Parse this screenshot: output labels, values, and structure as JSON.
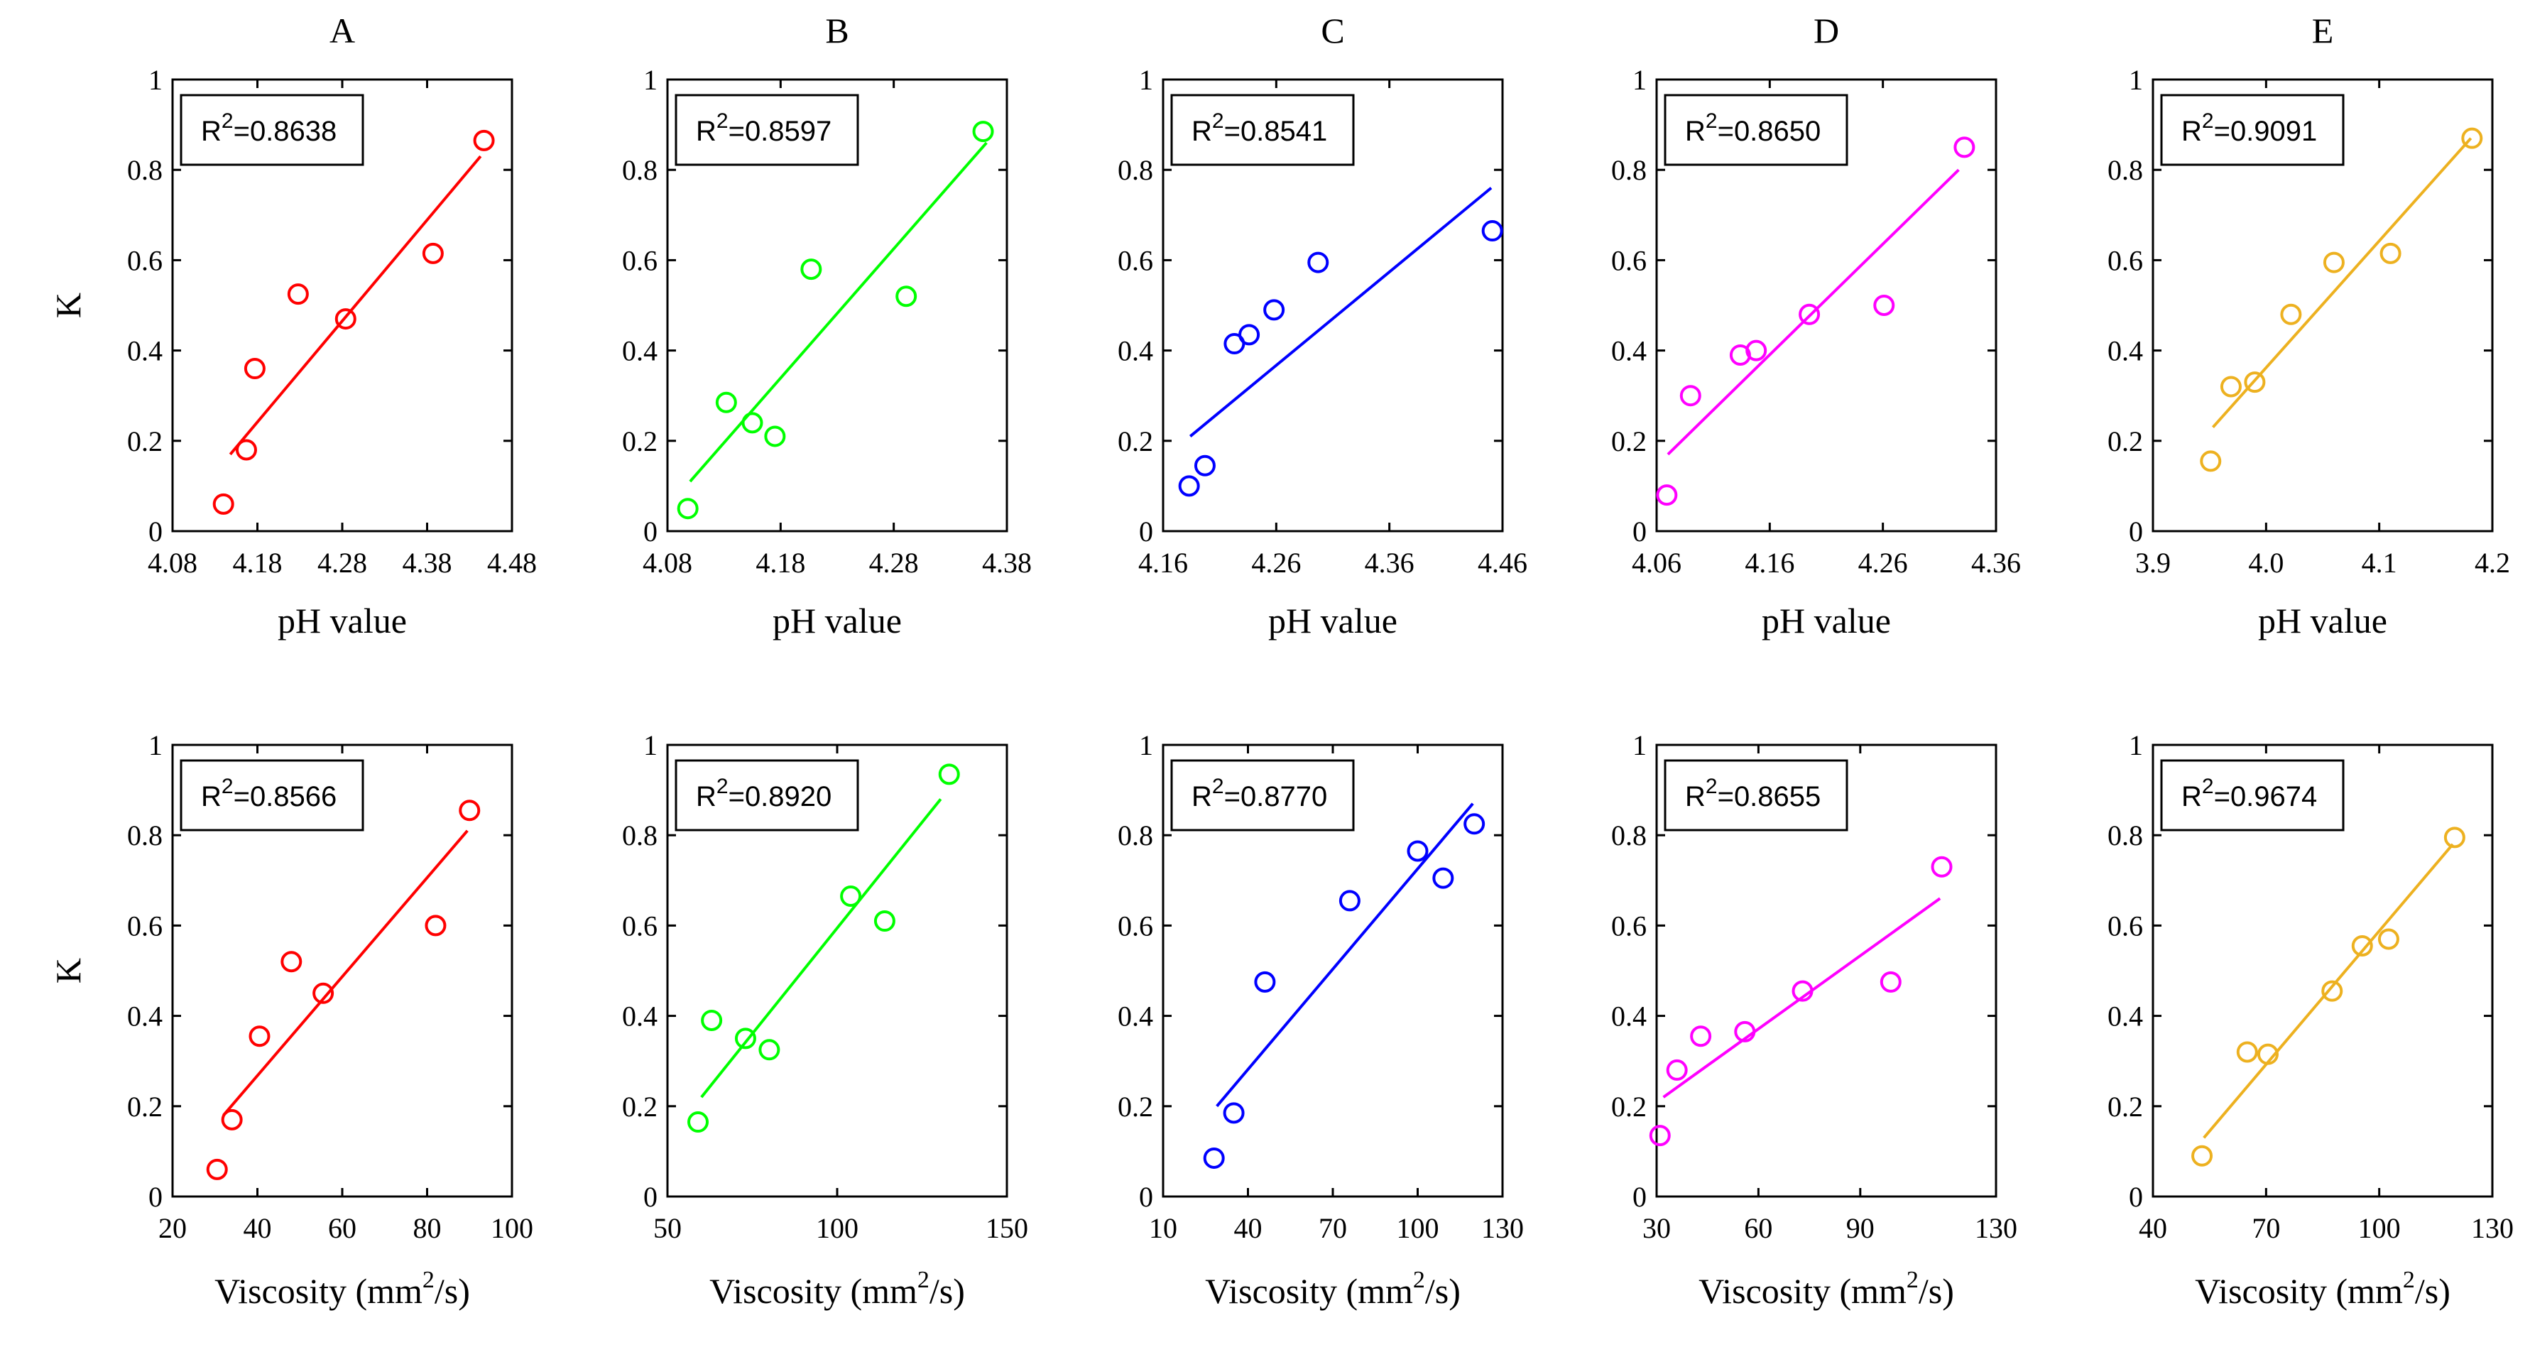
{
  "chart_data": [
    {
      "type": "scatter",
      "column": "A",
      "xlabel": "pH value",
      "ylabel": "K",
      "color": "#ff0000",
      "r2_base": "R",
      "r2_sup": "2",
      "r2_value": "=0.8638",
      "xlim": [
        4.08,
        4.48
      ],
      "ylim": [
        0,
        1
      ],
      "xticks": [
        "4.08",
        "4.18",
        "4.28",
        "4.38",
        "4.48"
      ],
      "yticks": [
        "0",
        "0.2",
        "0.4",
        "0.6",
        "0.8",
        "1"
      ],
      "x": [
        4.14,
        4.167,
        4.177,
        4.228,
        4.284,
        4.387,
        4.447
      ],
      "y": [
        0.06,
        0.18,
        0.36,
        0.525,
        0.47,
        0.615,
        0.865
      ],
      "fit_x": [
        4.148,
        4.443
      ],
      "fit_y": [
        0.17,
        0.83
      ]
    },
    {
      "type": "scatter",
      "column": "B",
      "xlabel": "pH value",
      "ylabel": "",
      "color": "#00ff00",
      "r2_base": "R",
      "r2_sup": "2",
      "r2_value": "=0.8597",
      "xlim": [
        4.08,
        4.38
      ],
      "ylim": [
        0,
        1
      ],
      "xticks": [
        "4.08",
        "4.18",
        "4.28",
        "4.38"
      ],
      "yticks": [
        "0",
        "0.2",
        "0.4",
        "0.6",
        "0.8",
        "1"
      ],
      "x": [
        4.098,
        4.132,
        4.155,
        4.175,
        4.207,
        4.291,
        4.359
      ],
      "y": [
        0.05,
        0.285,
        0.24,
        0.21,
        0.58,
        0.52,
        0.885
      ],
      "fit_x": [
        4.1,
        4.362
      ],
      "fit_y": [
        0.11,
        0.86
      ]
    },
    {
      "type": "scatter",
      "column": "C",
      "xlabel": "pH value",
      "ylabel": "",
      "color": "#0000ff",
      "r2_base": "R",
      "r2_sup": "2",
      "r2_value": "=0.8541",
      "xlim": [
        4.16,
        4.46
      ],
      "ylim": [
        0,
        1
      ],
      "xticks": [
        "4.16",
        "4.26",
        "4.36",
        "4.46"
      ],
      "yticks": [
        "0",
        "0.2",
        "0.4",
        "0.6",
        "0.8",
        "1"
      ],
      "x": [
        4.183,
        4.197,
        4.223,
        4.236,
        4.258,
        4.297,
        4.451
      ],
      "y": [
        0.1,
        0.145,
        0.415,
        0.435,
        0.49,
        0.595,
        0.665
      ],
      "fit_x": [
        4.184,
        4.45
      ],
      "fit_y": [
        0.21,
        0.76
      ]
    },
    {
      "type": "scatter",
      "column": "D",
      "xlabel": "pH value",
      "ylabel": "",
      "color": "#ff00ff",
      "r2_base": "R",
      "r2_sup": "2",
      "r2_value": "=0.8650",
      "xlim": [
        4.06,
        4.36
      ],
      "ylim": [
        0,
        1
      ],
      "xticks": [
        "4.06",
        "4.16",
        "4.26",
        "4.36"
      ],
      "yticks": [
        "0",
        "0.2",
        "0.4",
        "0.6",
        "0.8",
        "1"
      ],
      "x": [
        4.069,
        4.09,
        4.134,
        4.148,
        4.195,
        4.261,
        4.332
      ],
      "y": [
        0.08,
        0.3,
        0.39,
        0.4,
        0.48,
        0.5,
        0.85
      ],
      "fit_x": [
        4.07,
        4.327
      ],
      "fit_y": [
        0.17,
        0.8
      ]
    },
    {
      "type": "scatter",
      "column": "E",
      "xlabel": "pH value",
      "ylabel": "",
      "color": "#edb120",
      "r2_base": "R",
      "r2_sup": "2",
      "r2_value": "=0.9091",
      "xlim": [
        3.9,
        4.2
      ],
      "ylim": [
        0,
        1
      ],
      "xticks": [
        "3.9",
        "4.0",
        "4.1",
        "4.2"
      ],
      "yticks": [
        "0",
        "0.2",
        "0.4",
        "0.6",
        "0.8",
        "1"
      ],
      "x": [
        3.951,
        3.969,
        3.99,
        4.022,
        4.06,
        4.11,
        4.182
      ],
      "y": [
        0.155,
        0.32,
        0.33,
        0.48,
        0.595,
        0.615,
        0.87
      ],
      "fit_x": [
        3.953,
        4.181
      ],
      "fit_y": [
        0.23,
        0.87
      ]
    },
    {
      "type": "scatter",
      "column": "A",
      "xlabel": "Viscosity (mm²/s)",
      "ylabel": "K",
      "xlabel_base": "Viscosity (mm",
      "xlabel_sup": "2",
      "xlabel_end": "/s)",
      "color": "#ff0000",
      "r2_base": "R",
      "r2_sup": "2",
      "r2_value": "=0.8566",
      "xlim": [
        20,
        100
      ],
      "ylim": [
        0,
        1
      ],
      "xticks": [
        "20",
        "40",
        "60",
        "80",
        "100"
      ],
      "yticks": [
        "0",
        "0.2",
        "0.4",
        "0.6",
        "0.8",
        "1"
      ],
      "x": [
        30.5,
        34,
        40.5,
        48,
        55.5,
        82,
        90
      ],
      "y": [
        0.06,
        0.17,
        0.355,
        0.52,
        0.45,
        0.6,
        0.855
      ],
      "fit_x": [
        32,
        89.5
      ],
      "fit_y": [
        0.18,
        0.81
      ]
    },
    {
      "type": "scatter",
      "column": "B",
      "xlabel": "Viscosity (mm²/s)",
      "ylabel": "",
      "xlabel_base": "Viscosity (mm",
      "xlabel_sup": "2",
      "xlabel_end": "/s)",
      "color": "#00ff00",
      "r2_base": "R",
      "r2_sup": "2",
      "r2_value": "=0.8920",
      "xlim": [
        50,
        150
      ],
      "ylim": [
        0,
        1
      ],
      "xticks": [
        "50",
        "100",
        "150"
      ],
      "yticks": [
        "0",
        "0.2",
        "0.4",
        "0.6",
        "0.8",
        "1"
      ],
      "x": [
        59,
        63,
        73,
        80,
        104,
        114,
        133
      ],
      "y": [
        0.165,
        0.39,
        0.35,
        0.325,
        0.665,
        0.61,
        0.935
      ],
      "fit_x": [
        60,
        130.5
      ],
      "fit_y": [
        0.22,
        0.88
      ]
    },
    {
      "type": "scatter",
      "column": "C",
      "xlabel": "Viscosity (mm²/s)",
      "ylabel": "",
      "xlabel_base": "Viscosity (mm",
      "xlabel_sup": "2",
      "xlabel_end": "/s)",
      "color": "#0000ff",
      "r2_base": "R",
      "r2_sup": "2",
      "r2_value": "=0.8770",
      "xlim": [
        10,
        130
      ],
      "ylim": [
        0,
        1
      ],
      "xticks": [
        "10",
        "40",
        "70",
        "100",
        "130"
      ],
      "yticks": [
        "0",
        "0.2",
        "0.4",
        "0.6",
        "0.8",
        "1"
      ],
      "x": [
        28,
        35,
        46,
        76,
        100,
        109,
        120
      ],
      "y": [
        0.085,
        0.185,
        0.475,
        0.655,
        0.765,
        0.705,
        0.825
      ],
      "fit_x": [
        29,
        119.5
      ],
      "fit_y": [
        0.2,
        0.87
      ]
    },
    {
      "type": "scatter",
      "column": "D",
      "xlabel": "Viscosity (mm²/s)",
      "ylabel": "",
      "xlabel_base": "Viscosity (mm",
      "xlabel_sup": "2",
      "xlabel_end": "/s)",
      "color": "#ff00ff",
      "r2_base": "R",
      "r2_sup": "2",
      "r2_value": "=0.8655",
      "xlim": [
        30,
        130
      ],
      "ylim": [
        0,
        1
      ],
      "xticks": [
        "30",
        "60",
        "90",
        "130"
      ],
      "yticks": [
        "0",
        "0.2",
        "0.4",
        "0.6",
        "0.8",
        "1"
      ],
      "x": [
        31,
        36,
        43,
        56,
        73,
        99,
        114
      ],
      "y": [
        0.135,
        0.28,
        0.355,
        0.365,
        0.455,
        0.475,
        0.73
      ],
      "fit_x": [
        32,
        113.5
      ],
      "fit_y": [
        0.22,
        0.66
      ]
    },
    {
      "type": "scatter",
      "column": "E",
      "xlabel": "Viscosity (mm²/s)",
      "ylabel": "",
      "xlabel_base": "Viscosity (mm",
      "xlabel_sup": "2",
      "xlabel_end": "/s)",
      "color": "#edb120",
      "r2_base": "R",
      "r2_sup": "2",
      "r2_value": "=0.9674",
      "xlim": [
        40,
        130
      ],
      "ylim": [
        0,
        1
      ],
      "xticks": [
        "40",
        "70",
        "100",
        "130"
      ],
      "yticks": [
        "0",
        "0.2",
        "0.4",
        "0.6",
        "0.8",
        "1"
      ],
      "x": [
        53,
        65,
        70.5,
        87.5,
        95.5,
        102.5,
        120
      ],
      "y": [
        0.09,
        0.32,
        0.315,
        0.455,
        0.555,
        0.57,
        0.795
      ],
      "fit_x": [
        53.5,
        119.5
      ],
      "fit_y": [
        0.13,
        0.78
      ]
    }
  ]
}
